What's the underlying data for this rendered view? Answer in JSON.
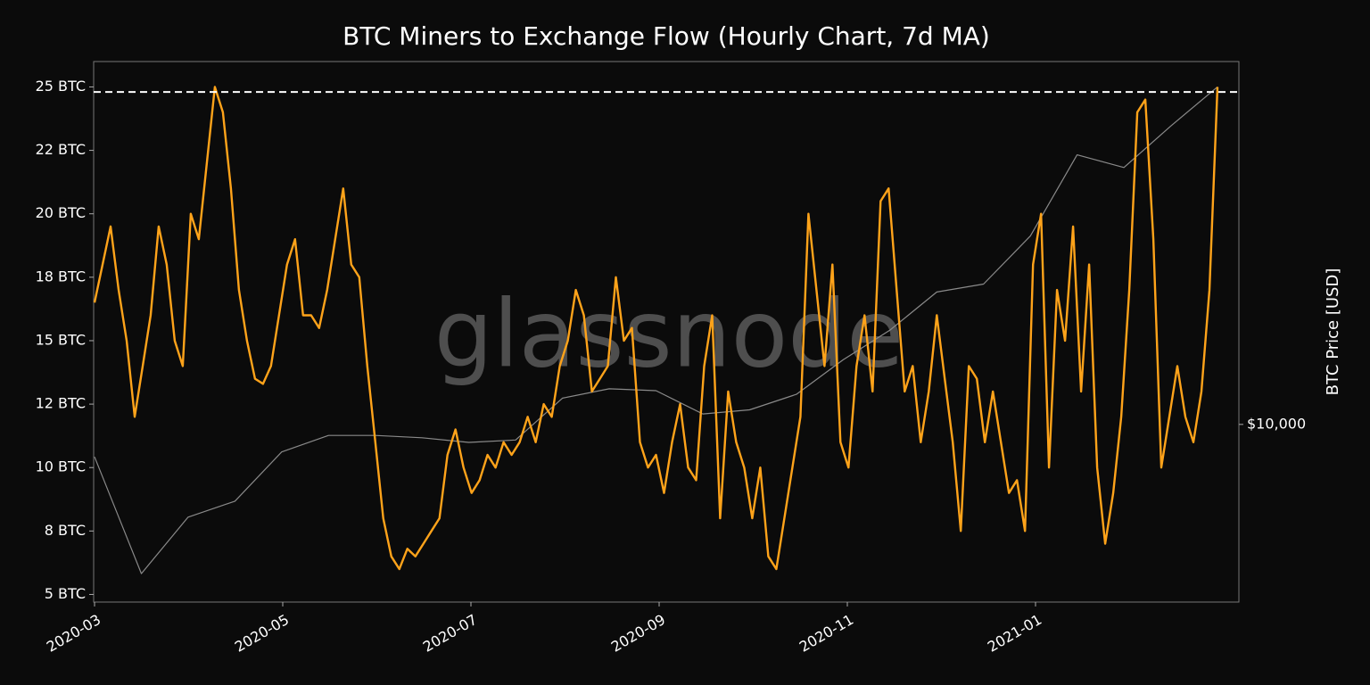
{
  "chart_data": {
    "type": "line",
    "title": "BTC Miners to Exchange Flow (Hourly Chart, 7d MA)",
    "y2label": "BTC Price [USD]",
    "watermark": "glassnode",
    "xlim": [
      "2020-03",
      "2021-03"
    ],
    "xticks": [
      "2020-03",
      "2020-05",
      "2020-07",
      "2020-09",
      "2020-11",
      "2021-01"
    ],
    "ylim": [
      4.7,
      26.0
    ],
    "yticks": [
      {
        "value": 5,
        "label": "5 BTC"
      },
      {
        "value": 7.5,
        "label": "8 BTC"
      },
      {
        "value": 10,
        "label": "10 BTC"
      },
      {
        "value": 12.5,
        "label": "12 BTC"
      },
      {
        "value": 15,
        "label": "15 BTC"
      },
      {
        "value": 17.5,
        "label": "18 BTC"
      },
      {
        "value": 20,
        "label": "20 BTC"
      },
      {
        "value": 22.5,
        "label": "22 BTC"
      },
      {
        "value": 25,
        "label": "25 BTC"
      }
    ],
    "y2lim": [
      4380,
      54000
    ],
    "y2log": true,
    "y2ticks": [
      {
        "value": 10000,
        "label": "$10,000"
      }
    ],
    "reference_line": {
      "value": 24.8,
      "color": "#ffffff"
    },
    "series": [
      {
        "color": "#ffa31a",
        "axis": "y",
        "values": [
          16.5,
          18,
          19.5,
          17,
          15,
          12,
          14,
          16,
          19.5,
          18,
          15,
          14,
          20,
          19,
          22,
          25,
          24,
          21,
          17,
          15,
          13.5,
          13.3,
          14,
          16,
          18,
          19,
          16,
          16,
          15.5,
          17,
          19,
          21,
          18,
          17.5,
          14,
          11,
          8,
          6.5,
          6,
          6.8,
          6.5,
          7,
          7.5,
          8,
          10.5,
          11.5,
          10,
          9,
          9.5,
          10.5,
          10,
          11,
          10.5,
          11,
          12,
          11,
          12.5,
          12,
          14,
          15,
          17,
          16,
          13,
          13.5,
          14,
          17.5,
          15,
          15.5,
          11,
          10,
          10.5,
          9,
          11,
          12.5,
          10,
          9.5,
          14,
          16,
          8,
          13,
          11,
          10,
          8,
          10,
          6.5,
          6,
          8,
          10,
          12,
          20,
          17,
          14,
          18,
          11,
          10,
          14,
          16,
          13,
          20.5,
          21,
          17,
          13,
          14,
          11,
          13,
          16,
          13.5,
          11,
          7.5,
          14,
          13.5,
          11,
          13,
          11,
          9,
          9.5,
          7.5,
          18,
          20,
          10,
          17,
          15,
          19.5,
          13,
          18,
          10,
          7,
          9,
          12,
          17,
          24,
          24.5,
          19,
          10,
          12,
          14,
          12,
          11,
          13,
          17,
          25
        ]
      },
      {
        "color": "#8a8a8a",
        "axis": "y2",
        "values": [
          8600,
          5000,
          6500,
          7000,
          8800,
          9500,
          9500,
          9400,
          9200,
          9300,
          11300,
          11800,
          11700,
          10500,
          10700,
          11500,
          13500,
          15500,
          18500,
          19200,
          24000,
          35000,
          33000,
          40000,
          48000
        ]
      }
    ]
  }
}
